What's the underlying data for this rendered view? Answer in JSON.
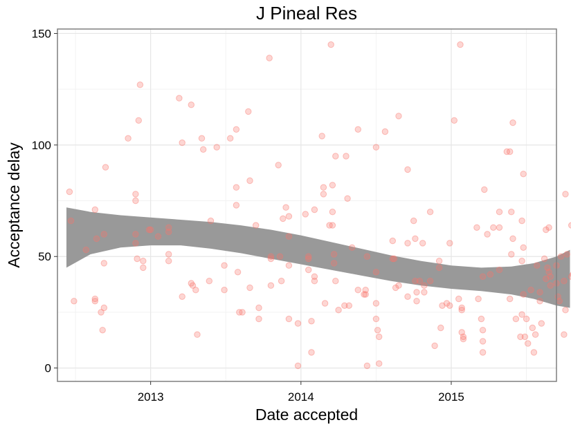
{
  "chart_data": {
    "type": "scatter",
    "title": "J Pineal Res",
    "xlabel": "Date accepted",
    "ylabel": "Acceptance delay",
    "xlim": [
      2012.38,
      2015.7
    ],
    "ylim": [
      -6,
      152
    ],
    "x_ticks": [
      2013,
      2014,
      2015
    ],
    "x_tick_labels": [
      "2013",
      "2014",
      "2015"
    ],
    "y_ticks": [
      0,
      50,
      100,
      150
    ],
    "y_tick_labels": [
      "0",
      "50",
      "100",
      "150"
    ],
    "grid": true,
    "point_color": "#f8766d",
    "smooth_band_color": "#999999",
    "points": [
      [
        2012.46,
        79
      ],
      [
        2012.47,
        66
      ],
      [
        2012.49,
        30
      ],
      [
        2012.57,
        53
      ],
      [
        2012.63,
        71
      ],
      [
        2012.64,
        58
      ],
      [
        2012.63,
        31
      ],
      [
        2012.63,
        30
      ],
      [
        2012.69,
        60
      ],
      [
        2012.7,
        90
      ],
      [
        2012.69,
        47
      ],
      [
        2012.67,
        25
      ],
      [
        2012.68,
        17
      ],
      [
        2012.69,
        27
      ],
      [
        2012.85,
        103
      ],
      [
        2012.9,
        78
      ],
      [
        2012.9,
        75
      ],
      [
        2012.9,
        60
      ],
      [
        2012.9,
        56
      ],
      [
        2012.91,
        49
      ],
      [
        2012.95,
        48
      ],
      [
        2012.93,
        127
      ],
      [
        2012.92,
        111
      ],
      [
        2012.99,
        62
      ],
      [
        2013.05,
        59
      ],
      [
        2013.12,
        63
      ],
      [
        2013.12,
        61
      ],
      [
        2013.12,
        51
      ],
      [
        2013.12,
        48
      ],
      [
        2013.19,
        121
      ],
      [
        2013.21,
        101
      ],
      [
        2013.21,
        32
      ],
      [
        2013.27,
        118
      ],
      [
        2013.27,
        38
      ],
      [
        2013.28,
        37
      ],
      [
        2013.31,
        15
      ],
      [
        2013.34,
        103
      ],
      [
        2013.35,
        98
      ],
      [
        2013.4,
        66
      ],
      [
        2013.39,
        39
      ],
      [
        2013.44,
        99
      ],
      [
        2013.49,
        46
      ],
      [
        2013.49,
        35
      ],
      [
        2013.53,
        103
      ],
      [
        2013.57,
        107
      ],
      [
        2013.57,
        81
      ],
      [
        2013.57,
        73
      ],
      [
        2013.58,
        43
      ],
      [
        2013.59,
        25
      ],
      [
        2013.61,
        25
      ],
      [
        2013.65,
        115
      ],
      [
        2013.66,
        84
      ],
      [
        2013.66,
        36
      ],
      [
        2013.7,
        64
      ],
      [
        2013.72,
        27
      ],
      [
        2013.72,
        22
      ],
      [
        2013.79,
        139
      ],
      [
        2013.8,
        50
      ],
      [
        2013.8,
        49
      ],
      [
        2013.8,
        37
      ],
      [
        2013.85,
        91
      ],
      [
        2013.86,
        50
      ],
      [
        2013.87,
        39
      ],
      [
        2013.88,
        67
      ],
      [
        2013.92,
        68
      ],
      [
        2013.92,
        59
      ],
      [
        2013.92,
        46
      ],
      [
        2013.92,
        22
      ],
      [
        2013.98,
        20
      ],
      [
        2013.98,
        1
      ],
      [
        2014.05,
        50
      ],
      [
        2014.05,
        49
      ],
      [
        2014.05,
        44
      ],
      [
        2014.07,
        21
      ],
      [
        2014.07,
        7
      ],
      [
        2014.09,
        71
      ],
      [
        2014.09,
        41
      ],
      [
        2014.09,
        39
      ],
      [
        2014.14,
        104
      ],
      [
        2014.15,
        81
      ],
      [
        2014.15,
        78
      ],
      [
        2014.16,
        29
      ],
      [
        2014.19,
        64
      ],
      [
        2014.2,
        145
      ],
      [
        2014.21,
        82
      ],
      [
        2014.21,
        70
      ],
      [
        2014.21,
        64
      ],
      [
        2014.23,
        95
      ],
      [
        2014.22,
        51
      ],
      [
        2014.22,
        47
      ],
      [
        2014.23,
        39
      ],
      [
        2014.25,
        26
      ],
      [
        2014.3,
        95
      ],
      [
        2014.31,
        76
      ],
      [
        2014.32,
        28
      ],
      [
        2014.34,
        54
      ],
      [
        2014.38,
        107
      ],
      [
        2014.38,
        35
      ],
      [
        2014.43,
        35
      ],
      [
        2014.43,
        33
      ],
      [
        2014.44,
        50
      ],
      [
        2014.44,
        1
      ],
      [
        2014.5,
        99
      ],
      [
        2014.5,
        43
      ],
      [
        2014.5,
        29
      ],
      [
        2014.5,
        22
      ],
      [
        2014.51,
        17
      ],
      [
        2014.52,
        14
      ],
      [
        2014.52,
        2
      ],
      [
        2014.56,
        106
      ],
      [
        2014.61,
        57
      ],
      [
        2014.61,
        49
      ],
      [
        2014.63,
        36
      ],
      [
        2014.65,
        113
      ],
      [
        2014.65,
        37
      ],
      [
        2014.71,
        89
      ],
      [
        2014.71,
        56
      ],
      [
        2014.71,
        32
      ],
      [
        2014.75,
        66
      ],
      [
        2014.76,
        58
      ],
      [
        2014.76,
        39
      ],
      [
        2014.77,
        34
      ],
      [
        2014.77,
        30
      ],
      [
        2014.79,
        39
      ],
      [
        2014.81,
        56
      ],
      [
        2014.82,
        37
      ],
      [
        2014.82,
        34
      ],
      [
        2014.86,
        70
      ],
      [
        2014.86,
        39
      ],
      [
        2014.89,
        10
      ],
      [
        2014.92,
        48
      ],
      [
        2014.92,
        45
      ],
      [
        2014.93,
        18
      ],
      [
        2014.94,
        28
      ],
      [
        2014.97,
        29
      ],
      [
        2014.99,
        56
      ],
      [
        2014.99,
        28
      ],
      [
        2015.02,
        111
      ],
      [
        2015.05,
        31
      ],
      [
        2015.07,
        27
      ],
      [
        2015.06,
        145
      ],
      [
        2015.07,
        16
      ],
      [
        2015.08,
        14
      ],
      [
        2015.08,
        13
      ],
      [
        2015.07,
        26
      ],
      [
        2015.17,
        63
      ],
      [
        2015.18,
        31
      ],
      [
        2015.2,
        22
      ],
      [
        2015.21,
        17
      ],
      [
        2015.21,
        12
      ],
      [
        2015.21,
        7
      ],
      [
        2015.22,
        80
      ],
      [
        2015.24,
        60
      ],
      [
        2015.26,
        42
      ],
      [
        2015.28,
        63
      ],
      [
        2015.32,
        70
      ],
      [
        2015.32,
        63
      ],
      [
        2015.32,
        44
      ],
      [
        2015.37,
        97
      ],
      [
        2015.39,
        97
      ],
      [
        2015.4,
        70
      ],
      [
        2015.39,
        31
      ],
      [
        2015.41,
        110
      ],
      [
        2015.41,
        58
      ],
      [
        2015.43,
        22
      ],
      [
        2015.48,
        87
      ],
      [
        2015.47,
        66
      ],
      [
        2015.48,
        54
      ],
      [
        2015.47,
        48
      ],
      [
        2015.47,
        24
      ],
      [
        2015.46,
        14
      ],
      [
        2015.48,
        33
      ],
      [
        2015.49,
        14
      ],
      [
        2015.5,
        22
      ],
      [
        2015.51,
        11
      ],
      [
        2015.53,
        35
      ],
      [
        2015.54,
        18
      ],
      [
        2015.55,
        7
      ],
      [
        2015.56,
        15
      ],
      [
        2015.57,
        46
      ],
      [
        2015.59,
        34
      ],
      [
        2015.59,
        30
      ],
      [
        2015.6,
        20
      ],
      [
        2015.62,
        49
      ],
      [
        2015.63,
        40
      ],
      [
        2015.64,
        45
      ],
      [
        2015.63,
        62
      ],
      [
        2015.65,
        63
      ],
      [
        2015.65,
        43
      ],
      [
        2015.66,
        41
      ],
      [
        2015.66,
        37
      ],
      [
        2015.7,
        46
      ],
      [
        2015.7,
        38
      ],
      [
        2015.71,
        32
      ],
      [
        2015.72,
        30
      ],
      [
        2015.75,
        39
      ],
      [
        2015.76,
        78
      ],
      [
        2015.77,
        51
      ],
      [
        2015.76,
        26
      ],
      [
        2015.75,
        15
      ],
      [
        2015.8,
        64
      ],
      [
        2015.8,
        41
      ],
      [
        2015.81,
        42
      ],
      [
        2015.82,
        18
      ],
      [
        2015.73,
        50
      ],
      [
        2015.4,
        51
      ],
      [
        2015.21,
        41
      ],
      [
        2014.62,
        49
      ],
      [
        2014.42,
        33
      ],
      [
        2014.29,
        28
      ],
      [
        2014.03,
        69
      ],
      [
        2013.9,
        72
      ],
      [
        2013.3,
        35
      ],
      [
        2013.0,
        62
      ],
      [
        2012.95,
        45
      ]
    ],
    "smooth_band": [
      {
        "x": 2012.44,
        "lower": 45,
        "upper": 72
      },
      {
        "x": 2012.6,
        "lower": 51,
        "upper": 70
      },
      {
        "x": 2012.8,
        "lower": 54,
        "upper": 68.5
      },
      {
        "x": 2013.0,
        "lower": 55,
        "upper": 67.5
      },
      {
        "x": 2013.2,
        "lower": 55,
        "upper": 66.5
      },
      {
        "x": 2013.4,
        "lower": 53.5,
        "upper": 65.5
      },
      {
        "x": 2013.6,
        "lower": 51.5,
        "upper": 64
      },
      {
        "x": 2013.8,
        "lower": 49,
        "upper": 62
      },
      {
        "x": 2014.0,
        "lower": 46.5,
        "upper": 59.5
      },
      {
        "x": 2014.2,
        "lower": 44,
        "upper": 56.5
      },
      {
        "x": 2014.4,
        "lower": 41.5,
        "upper": 53.5
      },
      {
        "x": 2014.6,
        "lower": 39,
        "upper": 50.5
      },
      {
        "x": 2014.8,
        "lower": 37,
        "upper": 48
      },
      {
        "x": 2015.0,
        "lower": 35.5,
        "upper": 46
      },
      {
        "x": 2015.2,
        "lower": 34.5,
        "upper": 45
      },
      {
        "x": 2015.4,
        "lower": 33,
        "upper": 45.5
      },
      {
        "x": 2015.55,
        "lower": 31,
        "upper": 47
      },
      {
        "x": 2015.7,
        "lower": 28,
        "upper": 50
      },
      {
        "x": 2015.79,
        "lower": 27,
        "upper": 53
      }
    ]
  }
}
